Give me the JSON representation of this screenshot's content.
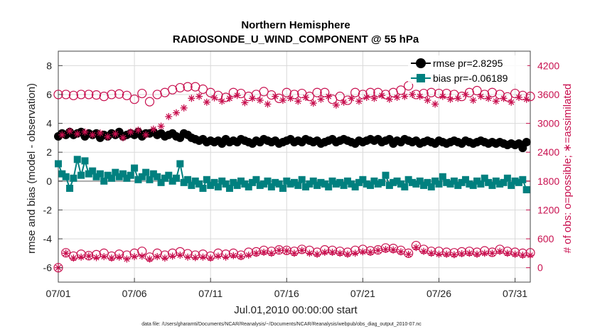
{
  "chart_data": {
    "type": "line",
    "title": "Northern Hemisphere",
    "subtitle": "RADIOSONDE_U_WIND_COMPONENT @ 55 hPa",
    "xlabel": "Jul.01,2010 00:00:00 start",
    "ylabel": "rmse and bias (model - observation)",
    "ylabel_right": "# of obs: o=possible; ∗=assimilated",
    "xlim": [
      0,
      31
    ],
    "ylim": [
      -7,
      9
    ],
    "ylim_right": [
      -300,
      4500
    ],
    "x_ticks": [
      0,
      5,
      10,
      15,
      20,
      25,
      30
    ],
    "x_tick_labels": [
      "07/01",
      "07/06",
      "07/11",
      "07/16",
      "07/21",
      "07/26",
      "07/31"
    ],
    "y_ticks": [
      -6,
      -4,
      -2,
      0,
      2,
      4,
      6,
      8
    ],
    "y_tick_labels": [
      "-6",
      "-4",
      "-2",
      "0",
      "2",
      "4",
      "6",
      "8"
    ],
    "y_ticks_right": [
      0,
      600,
      1200,
      1800,
      2400,
      3000,
      3600,
      4200
    ],
    "y_tick_labels_right": [
      "0",
      "600",
      "1200",
      "1800",
      "2400",
      "3000",
      "3600",
      "4200"
    ],
    "grid": true,
    "zero_line": 0,
    "legend_placement": "top-right",
    "legend": [
      "rmse pr=2.8295",
      "bias pr=-0.06189"
    ],
    "colors": {
      "rmse": "#000000",
      "bias": "#00807f",
      "obs": "#c8104f",
      "grid": "#d9d9d9",
      "zero": "#aaaaaa"
    },
    "series": [
      {
        "name": "rmse pr=2.8295",
        "axis": "left",
        "style": "line-filled-circle",
        "x": [
          0,
          0.25,
          0.5,
          0.75,
          1,
          1.25,
          1.5,
          1.75,
          2,
          2.25,
          2.5,
          2.75,
          3,
          3.25,
          3.5,
          3.75,
          4,
          4.25,
          4.5,
          4.75,
          5,
          5.25,
          5.5,
          5.75,
          6,
          6.25,
          6.5,
          6.75,
          7,
          7.25,
          7.5,
          7.75,
          8,
          8.25,
          8.5,
          8.75,
          9,
          9.25,
          9.5,
          9.75,
          10,
          10.25,
          10.5,
          10.75,
          11,
          11.25,
          11.5,
          11.75,
          12,
          12.25,
          12.5,
          12.75,
          13,
          13.25,
          13.5,
          13.75,
          14,
          14.25,
          14.5,
          14.75,
          15,
          15.25,
          15.5,
          15.75,
          16,
          16.25,
          16.5,
          16.75,
          17,
          17.25,
          17.5,
          17.75,
          18,
          18.25,
          18.5,
          18.75,
          19,
          19.25,
          19.5,
          19.75,
          20,
          20.25,
          20.5,
          20.75,
          21,
          21.25,
          21.5,
          21.75,
          22,
          22.25,
          22.5,
          22.75,
          23,
          23.25,
          23.5,
          23.75,
          24,
          24.25,
          24.5,
          24.75,
          25,
          25.25,
          25.5,
          25.75,
          26,
          26.25,
          26.5,
          26.75,
          27,
          27.25,
          27.5,
          27.75,
          28,
          28.25,
          28.5,
          28.75,
          29,
          29.25,
          29.5,
          29.75,
          30,
          30.25,
          30.5,
          30.75
        ],
        "values": [
          3.1,
          3.3,
          3.2,
          3.4,
          3.2,
          3.3,
          3.4,
          3.1,
          3.3,
          3.2,
          3.3,
          3.0,
          3.2,
          3.1,
          3.3,
          3.2,
          3.4,
          3.1,
          3.2,
          3.3,
          3.2,
          3.4,
          3.1,
          3.3,
          3.3,
          3.4,
          3.2,
          3.3,
          3.1,
          3.2,
          3.3,
          3.1,
          3.0,
          3.3,
          3.2,
          3.0,
          2.9,
          2.8,
          2.9,
          2.7,
          2.8,
          2.7,
          2.8,
          2.6,
          2.9,
          2.7,
          2.8,
          2.7,
          2.9,
          2.8,
          2.7,
          2.6,
          2.8,
          2.7,
          2.9,
          2.8,
          2.7,
          2.8,
          2.6,
          2.7,
          2.8,
          2.9,
          2.7,
          2.8,
          2.7,
          2.9,
          2.8,
          2.7,
          2.8,
          2.6,
          2.7,
          2.8,
          2.9,
          2.7,
          2.8,
          2.9,
          2.8,
          2.7,
          2.6,
          2.8,
          2.7,
          2.8,
          2.9,
          2.8,
          2.9,
          2.7,
          2.8,
          2.9,
          2.6,
          2.8,
          2.7,
          2.9,
          2.8,
          2.7,
          2.8,
          2.6,
          2.7,
          2.8,
          2.7,
          2.6,
          2.8,
          2.7,
          2.6,
          2.7,
          2.8,
          2.7,
          2.6,
          2.8,
          2.7,
          2.6,
          2.7,
          2.8,
          2.7,
          2.6,
          2.7,
          2.6,
          2.7,
          2.6,
          2.5,
          2.6,
          2.5,
          2.6,
          2.3,
          2.7
        ]
      },
      {
        "name": "bias pr=-0.06189",
        "axis": "left",
        "style": "line-filled-square",
        "x": [
          0,
          0.25,
          0.5,
          0.75,
          1,
          1.25,
          1.5,
          1.75,
          2,
          2.25,
          2.5,
          2.75,
          3,
          3.25,
          3.5,
          3.75,
          4,
          4.25,
          4.5,
          4.75,
          5,
          5.25,
          5.5,
          5.75,
          6,
          6.25,
          6.5,
          6.75,
          7,
          7.25,
          7.5,
          7.75,
          8,
          8.25,
          8.5,
          8.75,
          9,
          9.25,
          9.5,
          9.75,
          10,
          10.25,
          10.5,
          10.75,
          11,
          11.25,
          11.5,
          11.75,
          12,
          12.25,
          12.5,
          12.75,
          13,
          13.25,
          13.5,
          13.75,
          14,
          14.25,
          14.5,
          14.75,
          15,
          15.25,
          15.5,
          15.75,
          16,
          16.25,
          16.5,
          16.75,
          17,
          17.25,
          17.5,
          17.75,
          18,
          18.25,
          18.5,
          18.75,
          19,
          19.25,
          19.5,
          19.75,
          20,
          20.25,
          20.5,
          20.75,
          21,
          21.25,
          21.5,
          21.75,
          22,
          22.25,
          22.5,
          22.75,
          23,
          23.25,
          23.5,
          23.75,
          24,
          24.25,
          24.5,
          24.75,
          25,
          25.25,
          25.5,
          25.75,
          26,
          26.25,
          26.5,
          26.75,
          27,
          27.25,
          27.5,
          27.75,
          28,
          28.25,
          28.5,
          28.75,
          29,
          29.25,
          29.5,
          29.75,
          30,
          30.25,
          30.5,
          30.75
        ],
        "values": [
          1.2,
          0.5,
          0.3,
          -0.5,
          0.2,
          1.5,
          0.4,
          1.4,
          0.5,
          0.7,
          0.3,
          0.5,
          0.0,
          0.4,
          0.2,
          0.6,
          0.3,
          0.5,
          0.2,
          0.4,
          0.9,
          0.1,
          0.3,
          0.6,
          0.1,
          0.5,
          0.3,
          -0.1,
          0.2,
          0.4,
          0.0,
          0.2,
          1.2,
          -0.1,
          0.1,
          -0.3,
          0.0,
          -0.2,
          -0.5,
          0.1,
          -0.3,
          -0.1,
          -0.4,
          0.0,
          -0.2,
          -0.5,
          -0.1,
          -0.3,
          0.0,
          -0.2,
          -0.4,
          -0.1,
          0.1,
          -0.3,
          -0.2,
          0.0,
          -0.4,
          -0.1,
          -0.2,
          -0.5,
          0.0,
          -0.2,
          -0.1,
          -0.3,
          0.1,
          -0.4,
          -0.2,
          0.0,
          -0.3,
          -0.1,
          -0.2,
          -0.4,
          0.0,
          -0.2,
          -0.1,
          -0.3,
          0.0,
          -0.2,
          -0.4,
          -0.1,
          0.1,
          -0.2,
          -0.3,
          0.0,
          -0.2,
          -0.1,
          0.4,
          -0.3,
          -0.1,
          0.0,
          -0.2,
          -0.4,
          0.1,
          -0.1,
          -0.2,
          0.0,
          -0.3,
          -0.1,
          -0.4,
          0.0,
          -0.2,
          0.3,
          -0.1,
          -0.2,
          0.0,
          -0.3,
          -0.1,
          0.1,
          -0.2,
          -0.3,
          0.0,
          -0.2,
          0.2,
          -0.1,
          -0.3,
          0.0,
          -0.2,
          -0.1,
          0.2,
          -0.3,
          0.0,
          -0.1,
          0.1,
          -0.6
        ]
      },
      {
        "name": "possible",
        "axis": "right",
        "style": "open-circle",
        "x": [
          0,
          0.5,
          1,
          1.5,
          2,
          2.5,
          3,
          3.5,
          4,
          4.5,
          5,
          5.5,
          6,
          6.5,
          7,
          7.5,
          8,
          8.5,
          9,
          9.5,
          10,
          10.5,
          11,
          11.5,
          12,
          12.5,
          13,
          13.5,
          14,
          14.5,
          15,
          15.5,
          16,
          16.5,
          17,
          17.5,
          18,
          18.5,
          19,
          19.5,
          20,
          20.5,
          21,
          21.5,
          22,
          22.5,
          23,
          23.5,
          24,
          24.5,
          25,
          25.5,
          26,
          26.5,
          27,
          27.5,
          28,
          28.5,
          29,
          29.5,
          30,
          30.5,
          31
        ],
        "values": [
          3600,
          3600,
          3580,
          3600,
          3600,
          3590,
          3560,
          3600,
          3610,
          3580,
          3500,
          3620,
          3450,
          3600,
          3640,
          3700,
          3740,
          3760,
          3760,
          3710,
          3640,
          3580,
          3540,
          3640,
          3620,
          3560,
          3600,
          3660,
          3590,
          3520,
          3640,
          3600,
          3620,
          3560,
          3640,
          3640,
          3500,
          3560,
          3480,
          3640,
          3600,
          3640,
          3640,
          3600,
          3640,
          3690,
          3780,
          3600,
          3620,
          3640,
          3620,
          3620,
          3600,
          3560,
          3640,
          3680,
          3600,
          3640,
          3600,
          3550,
          3620,
          3580,
          3560
        ]
      },
      {
        "name": "assimilated",
        "axis": "right",
        "style": "asterisk",
        "x": [
          0.25,
          0.75,
          1.25,
          1.75,
          2.25,
          2.75,
          3.25,
          3.75,
          4.25,
          4.75,
          5.25,
          5.75,
          6.25,
          6.75,
          7.25,
          7.75,
          8.25,
          8.75,
          9.25,
          9.75,
          10.25,
          10.75,
          11.25,
          11.75,
          12.25,
          12.75,
          13.25,
          13.75,
          14.25,
          14.75,
          15.25,
          15.75,
          16.25,
          16.75,
          17.25,
          17.75,
          18.25,
          18.75,
          19.25,
          19.75,
          20.25,
          20.75,
          21.25,
          21.75,
          22.25,
          22.75,
          23.25,
          23.75,
          24.25,
          24.75,
          25.25,
          25.75,
          26.25,
          26.75,
          27.25,
          27.75,
          28.25,
          28.75,
          29.25,
          29.75,
          30.25,
          30.75
        ],
        "values": [
          2760,
          2840,
          2780,
          2820,
          2760,
          2800,
          2720,
          2780,
          2700,
          2820,
          2860,
          2760,
          2880,
          2940,
          3140,
          3220,
          3320,
          3520,
          3560,
          3440,
          3530,
          3460,
          3520,
          3580,
          3430,
          3520,
          3480,
          3400,
          3560,
          3480,
          3520,
          3460,
          3540,
          3420,
          3500,
          3560,
          3380,
          3440,
          3520,
          3460,
          3540,
          3520,
          3580,
          3500,
          3540,
          3560,
          3600,
          3560,
          3480,
          3400,
          3560,
          3500,
          3520,
          3600,
          3480,
          3560,
          3520,
          3460,
          3520,
          3440,
          3540,
          3500
        ]
      },
      {
        "name": "possible-low",
        "axis": "right",
        "style": "open-circle",
        "x": [
          0,
          0.5,
          1,
          1.5,
          2,
          2.5,
          3,
          3.5,
          4,
          4.5,
          5,
          5.5,
          6,
          6.5,
          7,
          7.5,
          8,
          8.5,
          9,
          9.5,
          10,
          10.5,
          11,
          11.5,
          12,
          12.5,
          13,
          13.5,
          14,
          14.5,
          15,
          15.5,
          16,
          16.5,
          17,
          17.5,
          18,
          18.5,
          19,
          19.5,
          20,
          20.5,
          21,
          21.5,
          22,
          22.5,
          23,
          23.5,
          24,
          24.5,
          25,
          25.5,
          26,
          26.5,
          27,
          27.5,
          28,
          28.5,
          29,
          29.5,
          30,
          30.5,
          31
        ],
        "values": [
          0,
          310,
          240,
          280,
          250,
          270,
          300,
          240,
          280,
          260,
          300,
          340,
          220,
          300,
          260,
          300,
          330,
          290,
          260,
          280,
          240,
          300,
          280,
          300,
          260,
          320,
          330,
          360,
          340,
          370,
          360,
          340,
          380,
          360,
          320,
          370,
          360,
          340,
          320,
          360,
          380,
          350,
          370,
          410,
          400,
          360,
          300,
          460,
          380,
          340,
          340,
          320,
          310,
          330,
          340,
          320,
          350,
          320,
          380,
          340,
          320,
          300,
          310
        ]
      },
      {
        "name": "assimilated-low",
        "axis": "right",
        "style": "asterisk",
        "x": [
          0,
          0.5,
          1,
          1.5,
          2,
          2.5,
          3,
          3.5,
          4,
          4.5,
          5,
          5.5,
          6,
          6.5,
          7,
          7.5,
          8,
          8.5,
          9,
          9.5,
          10,
          10.5,
          11,
          11.5,
          12,
          12.5,
          13,
          13.5,
          14,
          14.5,
          15,
          15.5,
          16,
          16.5,
          17,
          17.5,
          18,
          18.5,
          19,
          19.5,
          20,
          20.5,
          21,
          21.5,
          22,
          22.5,
          23,
          23.5,
          24,
          24.5,
          25,
          25.5,
          26,
          26.5,
          27,
          27.5,
          28,
          28.5,
          29,
          29.5,
          30,
          30.5,
          31
        ],
        "values": [
          0,
          300,
          200,
          220,
          240,
          210,
          230,
          200,
          220,
          180,
          230,
          240,
          180,
          230,
          200,
          240,
          260,
          220,
          210,
          220,
          200,
          240,
          220,
          250,
          230,
          260,
          300,
          320,
          300,
          360,
          350,
          300,
          360,
          300,
          280,
          320,
          320,
          300,
          280,
          300,
          330,
          320,
          360,
          380,
          370,
          330,
          280,
          420,
          340,
          300,
          280,
          280,
          270,
          290,
          300,
          280,
          300,
          300,
          340,
          300,
          280,
          260,
          260
        ]
      }
    ]
  },
  "footer": "data file: /Users/gharamti/Documents/NCAR/Reanalysis/~/Documents/NCAR/Reanalysis/webpub/obs_diag_output_2010-07.nc"
}
